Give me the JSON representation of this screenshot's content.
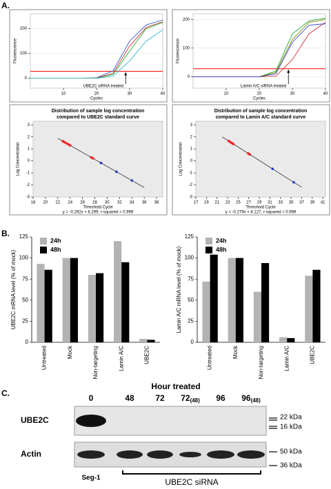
{
  "panel_labels": [
    "A.",
    "B.",
    "C."
  ],
  "chart_data": [
    {
      "type": "line",
      "xlabel": "Cycles",
      "ylabel": "Fluorescence",
      "annotation": "UBE2C siRNA treated",
      "threshold": 28,
      "threshold_color": "#ff0000",
      "x": [
        0,
        5,
        10,
        15,
        20,
        25,
        30,
        35,
        40
      ],
      "xlim": [
        0,
        40
      ],
      "xticks": [
        10,
        20,
        30,
        40
      ],
      "ylim": [
        -40,
        260
      ],
      "yticks": [
        0,
        100,
        200
      ],
      "series": [
        {
          "color": "#3355cc",
          "values": [
            0,
            0,
            0,
            0,
            2,
            30,
            150,
            215,
            235
          ]
        },
        {
          "color": "#22aa33",
          "values": [
            0,
            0,
            0,
            0,
            1,
            15,
            110,
            200,
            225
          ]
        },
        {
          "color": "#cc3333",
          "values": [
            0,
            0,
            0,
            0,
            1,
            20,
            130,
            205,
            228
          ]
        },
        {
          "color": "#33bbcc",
          "values": [
            0,
            0,
            0,
            0,
            0,
            8,
            70,
            150,
            195
          ]
        }
      ]
    },
    {
      "type": "line",
      "xlabel": "Cycles",
      "ylabel": "Fluorescence",
      "annotation": "Lamin A/C siRNA treated",
      "threshold": 28,
      "threshold_color": "#ff0000",
      "x": [
        0,
        5,
        10,
        15,
        20,
        25,
        30,
        35,
        40
      ],
      "xlim": [
        0,
        40
      ],
      "xticks": [
        10,
        20,
        30,
        40
      ],
      "ylim": [
        -40,
        220
      ],
      "yticks": [
        0,
        100,
        200
      ],
      "series": [
        {
          "color": "#22aa33",
          "values": [
            0,
            0,
            0,
            0,
            0,
            20,
            150,
            195,
            205
          ]
        },
        {
          "color": "#888800",
          "values": [
            0,
            0,
            0,
            0,
            0,
            15,
            130,
            190,
            200
          ]
        },
        {
          "color": "#cc3333",
          "values": [
            0,
            0,
            0,
            0,
            0,
            2,
            60,
            150,
            190
          ]
        },
        {
          "color": "#3344cc",
          "values": [
            0,
            0,
            0,
            0,
            0,
            10,
            120,
            180,
            185
          ]
        }
      ]
    },
    {
      "type": "scatter",
      "title": [
        "Distribution of sample log concentration",
        "compared to UBE2C standard curve"
      ],
      "equation": "y = -0.292x + 8.299, r-squared = 0.999",
      "xlabel": "Threshold Cycle",
      "ylabel": "Log Concentration",
      "xlim": [
        18,
        39
      ],
      "xticks": [
        18,
        20,
        22,
        24,
        26,
        28,
        30,
        32,
        34,
        36,
        38
      ],
      "ylim": [
        -3,
        3.3
      ],
      "yticks": [
        -3,
        -2,
        -1,
        0,
        1,
        2,
        3
      ],
      "fit": {
        "x": [
          22,
          36
        ],
        "y": [
          1.875,
          -2.213
        ]
      },
      "series": [
        {
          "color": "#ee2222",
          "x": [
            22.8,
            23.1,
            23.4,
            23.7,
            24.0,
            27.4,
            27.7
          ],
          "values": [
            1.641,
            1.554,
            1.466,
            1.379,
            1.291,
            0.298,
            0.211
          ]
        },
        {
          "color": "#2233cc",
          "x": [
            29,
            31.5,
            34
          ],
          "values": [
            -0.169,
            -0.899,
            -1.629
          ]
        }
      ]
    },
    {
      "type": "scatter",
      "title": [
        "Distribution of sample log concentration",
        "compared to Lamin A/C standard curve"
      ],
      "equation": "y = -0.279x + 8.127, r-squared = 0.999",
      "xlabel": "Threshold Cycle",
      "ylabel": "Log Concentration",
      "xlim": [
        17,
        41.5
      ],
      "xticks": [
        17,
        19,
        21,
        23,
        25,
        27,
        29,
        31,
        33,
        35,
        37,
        39,
        41
      ],
      "ylim": [
        -3,
        3.3
      ],
      "yticks": [
        -3,
        -2,
        -1,
        0,
        1,
        2,
        3
      ],
      "fit": {
        "x": [
          22,
          37
        ],
        "y": [
          1.989,
          -2.196
        ]
      },
      "series": [
        {
          "color": "#ee2222",
          "x": [
            23.2,
            23.5,
            23.8,
            24.1,
            26.9,
            27.2
          ],
          "values": [
            1.654,
            1.57,
            1.487,
            1.403,
            0.622,
            0.538
          ]
        },
        {
          "color": "#2233cc",
          "x": [
            31.5,
            35.5
          ],
          "values": [
            -0.662,
            -1.778
          ]
        }
      ]
    },
    {
      "type": "bar",
      "ylabel": "UBE2C mRNA level (% of mock)",
      "categories": [
        "Untreated",
        "Mock",
        "Non-targeting",
        "Lamin A/C",
        "UBE2C"
      ],
      "ylim": [
        0,
        125
      ],
      "yticks": [
        0,
        25,
        50,
        75,
        100,
        125
      ],
      "series": [
        {
          "name": "24h",
          "color": "#b3b3b3",
          "values": [
            93,
            100,
            80,
            120,
            4
          ]
        },
        {
          "name": "48h",
          "color": "#000000",
          "values": [
            86,
            100,
            82,
            95,
            3
          ]
        }
      ]
    },
    {
      "type": "bar",
      "ylabel": "Lamin A/C mRNA level (% of mock)",
      "categories": [
        "Untreated",
        "Mock",
        "Non-targeting",
        "Lamin A/C",
        "UBE2C"
      ],
      "ylim": [
        0,
        125
      ],
      "yticks": [
        0,
        25,
        50,
        75,
        100,
        125
      ],
      "series": [
        {
          "name": "24h",
          "color": "#b3b3b3",
          "values": [
            72,
            100,
            60,
            6,
            79
          ]
        },
        {
          "name": "48h",
          "color": "#000000",
          "values": [
            104,
            100,
            94,
            5,
            86
          ]
        }
      ]
    }
  ],
  "blot": {
    "title": "Hour treated",
    "lanes": [
      {
        "main": "0"
      },
      {
        "main": "48"
      },
      {
        "main": "72"
      },
      {
        "main": "72",
        "sub": "(48)"
      },
      {
        "main": "96"
      },
      {
        "main": "96",
        "sub": "(48)"
      }
    ],
    "rows": [
      "UBE2C",
      "Actin"
    ],
    "markers": [
      "22 kDa",
      "16 kDa",
      "50 kDa",
      "36 kDa"
    ],
    "control": "Seg-1",
    "treatment": "UBE2C siRNA"
  }
}
